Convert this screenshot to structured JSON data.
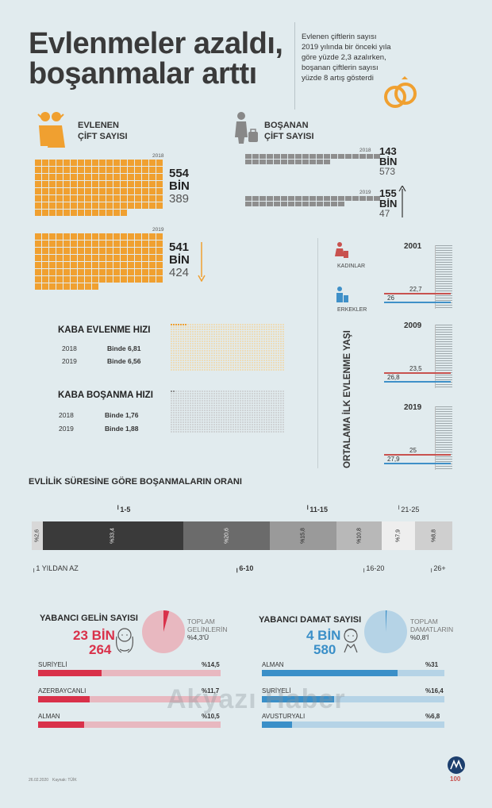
{
  "header": {
    "title_line1": "Evlenmeler azaldı,",
    "title_line2": "boşanmalar arttı",
    "intro": "Evlenen çiftlerin sayısı 2019 yılında bir önceki yıla göre yüzde 2,3 azalırken, boşanan çiftlerin sayısı yüzde 8 artış gösterdi"
  },
  "marriage": {
    "label_line1": "EVLENEN",
    "label_line2": "ÇİFT SAYISI",
    "y2018": {
      "year": "2018",
      "big": "554",
      "unit": "BİN",
      "small": "389",
      "value": 554389
    },
    "y2019": {
      "year": "2019",
      "big": "541",
      "unit": "BİN",
      "small": "424",
      "value": 541424
    },
    "trend_icon": "arrow-down-icon"
  },
  "divorce": {
    "label_line1": "BOŞANAN",
    "label_line2": "ÇİFT SAYISI",
    "y2018": {
      "year": "2018",
      "big": "143",
      "unit": "BİN",
      "small": "573",
      "value": 143573
    },
    "y2019": {
      "year": "2019",
      "big": "155",
      "unit": "BİN",
      "small": "47",
      "value": 155047
    },
    "trend_icon": "arrow-up-icon"
  },
  "crude_marriage": {
    "title": "KABA EVLENME HIZI",
    "rows": [
      {
        "year": "2018",
        "value": "Binde 6,81"
      },
      {
        "year": "2019",
        "value": "Binde 6,56"
      }
    ]
  },
  "crude_divorce": {
    "title": "KABA BOŞANMA HIZI",
    "rows": [
      {
        "year": "2018",
        "value": "Binde 1,76"
      },
      {
        "year": "2019",
        "value": "Binde 1,88"
      }
    ]
  },
  "age": {
    "vertical_title": "ORTALAMA İLK EVLENME YAŞI",
    "legend_women": "KADINLAR",
    "legend_men": "ERKEKLER",
    "colors": {
      "women": "#c8524f",
      "men": "#3f90c8"
    },
    "years": [
      {
        "year": "2001",
        "women": "22,7",
        "men": "26"
      },
      {
        "year": "2009",
        "women": "23,5",
        "men": "26,8"
      },
      {
        "year": "2019",
        "women": "25",
        "men": "27,9"
      }
    ]
  },
  "duration": {
    "title": "EVLİLİK SÜRESİNE GÖRE BOŞANMALARIN ORANI",
    "segments": [
      {
        "pct_label": "%2,6",
        "value": 2.6,
        "color": "#d8d8d8",
        "text_color": "#333333"
      },
      {
        "pct_label": "%33,4",
        "value": 33.4,
        "color": "#3a3a3a",
        "text_color": "#eeeeee"
      },
      {
        "pct_label": "%20,6",
        "value": 20.6,
        "color": "#6b6b6b",
        "text_color": "#eeeeee"
      },
      {
        "pct_label": "%15,8",
        "value": 15.8,
        "color": "#9a9a9a",
        "text_color": "#222222"
      },
      {
        "pct_label": "%10,8",
        "value": 10.8,
        "color": "#b8b8b8",
        "text_color": "#222222"
      },
      {
        "pct_label": "%7,9",
        "value": 7.9,
        "color": "#eeeeee",
        "text_color": "#222222"
      },
      {
        "pct_label": "%8,8",
        "value": 8.8,
        "color": "#cfcfcf",
        "text_color": "#222222"
      }
    ],
    "labels_top": [
      "1-5",
      "11-15",
      "21-25"
    ],
    "labels_bottom": [
      "1 YILDAN AZ",
      "6-10",
      "16-20",
      "26+"
    ]
  },
  "brides": {
    "title": "YABANCI GELİN SAYISI",
    "big": "23 BİN",
    "small": "264",
    "share_label_line1": "TOPLAM",
    "share_label_line2": "GELİNLERİN",
    "share_label_line3": "%4,3'Ü",
    "share_value": 4.3,
    "color": "#d9314a",
    "bar_bg": "#e8b8c0",
    "rows": [
      {
        "name": "SURİYELİ",
        "pct": "%14,5",
        "value": 14.5
      },
      {
        "name": "AZERBAYCANLI",
        "pct": "%11,7",
        "value": 11.7
      },
      {
        "name": "ALMAN",
        "pct": "%10,5",
        "value": 10.5
      }
    ]
  },
  "grooms": {
    "title": "YABANCI DAMAT SAYISI",
    "big": "4 BİN",
    "small": "580",
    "share_label_line1": "TOPLAM",
    "share_label_line2": "DAMATLARIN",
    "share_label_line3": "%0,8'İ",
    "share_value": 0.8,
    "color": "#3a8fc8",
    "bar_bg": "#b5d3e6",
    "rows": [
      {
        "name": "ALMAN",
        "pct": "%31",
        "value": 31
      },
      {
        "name": "SURİYELİ",
        "pct": "%16,4",
        "value": 16.4
      },
      {
        "name": "AVUSTURYALI",
        "pct": "%6,8",
        "value": 6.8
      }
    ]
  },
  "watermark": "Akyazı Haber",
  "footer": {
    "date": "26.02.2020",
    "source": "Kaynak: TÜİK"
  }
}
